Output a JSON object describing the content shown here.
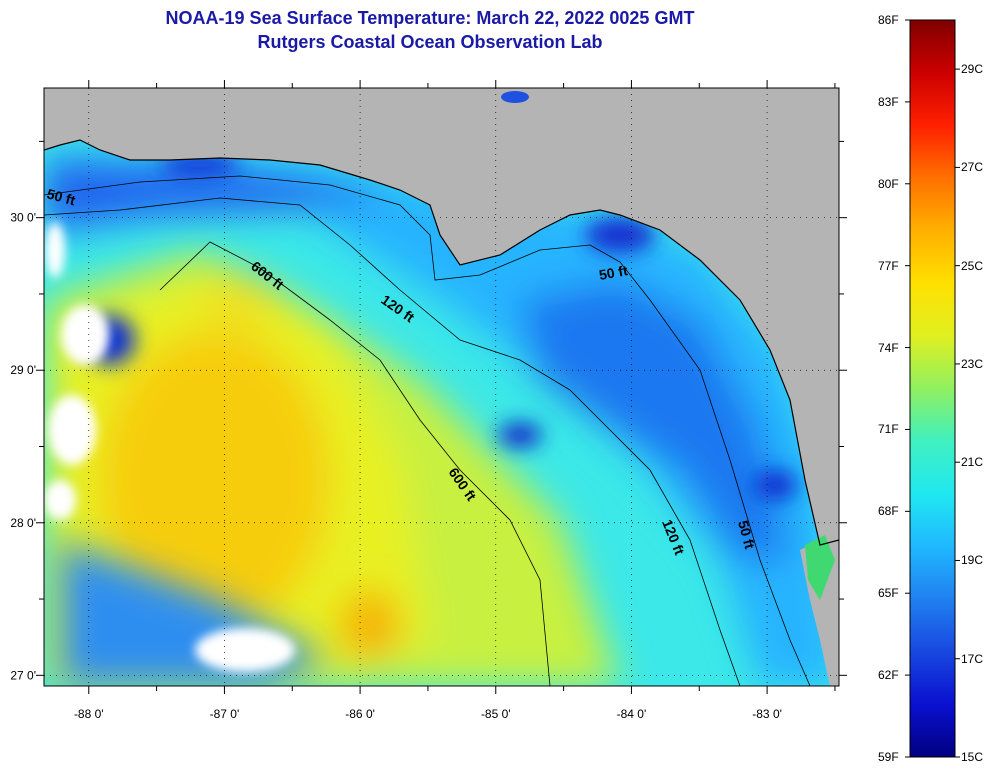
{
  "title": {
    "line1": "NOAA-19 Sea Surface Temperature:  March 22, 2022 0025 GMT",
    "line2": "Rutgers Coastal Ocean Observation Lab"
  },
  "map": {
    "lon_range": [
      -88.33,
      -82.47
    ],
    "lat_range": [
      26.93,
      30.85
    ],
    "lon_ticks": [
      {
        "value": -88,
        "label": "-88 0'"
      },
      {
        "value": -87,
        "label": "-87 0'"
      },
      {
        "value": -86,
        "label": "-86 0'"
      },
      {
        "value": -85,
        "label": "-85 0'"
      },
      {
        "value": -84,
        "label": "-84 0'"
      },
      {
        "value": -83,
        "label": "-83 0'"
      }
    ],
    "lat_ticks": [
      {
        "value": 30,
        "label": "30 0'"
      },
      {
        "value": 29,
        "label": "29 0'"
      },
      {
        "value": 28,
        "label": "28 0'"
      },
      {
        "value": 27,
        "label": "27 0'"
      }
    ],
    "contour_labels": [
      {
        "text": "50 ft"
      },
      {
        "text": "600 ft"
      },
      {
        "text": "120 ft"
      },
      {
        "text": "50 ft"
      },
      {
        "text": "600 ft"
      },
      {
        "text": "120 ft"
      },
      {
        "text": "50 ft"
      }
    ],
    "colors": {
      "land": "#b4b4b4",
      "cloud": "#ffffff",
      "cold": "#1c48e6",
      "cool": "#26b4ff",
      "mild": "#3cf0e0",
      "warm": "#c8f040",
      "hot": "#f6d100"
    }
  },
  "colorbar": {
    "fahrenheit": [
      "86F",
      "83F",
      "80F",
      "77F",
      "74F",
      "71F",
      "68F",
      "65F",
      "62F",
      "59F"
    ],
    "celsius": [
      "29C",
      "27C",
      "25C",
      "23C",
      "21C",
      "19C",
      "17C",
      "15C"
    ],
    "gradient": [
      "#800000",
      "#cc0000",
      "#ff2000",
      "#ff7000",
      "#ffb000",
      "#ffe000",
      "#e0f020",
      "#90f060",
      "#40f0c0",
      "#20e8f0",
      "#20b8ff",
      "#2080f0",
      "#1848e0",
      "#0a10d0",
      "#000080"
    ]
  }
}
